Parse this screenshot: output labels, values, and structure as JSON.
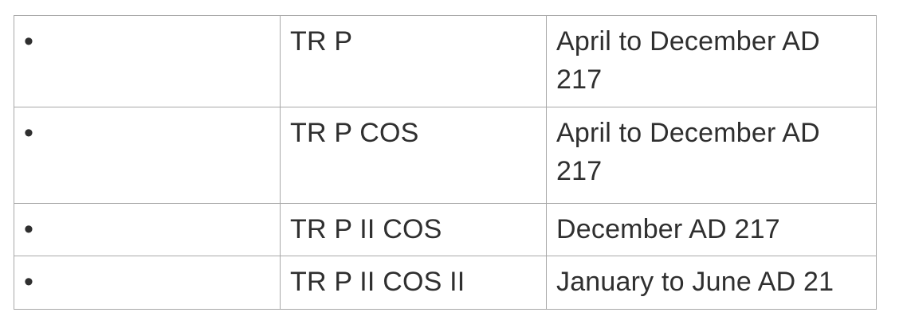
{
  "page": {
    "background_color": "#ffffff"
  },
  "table": {
    "border_color": "#a8a8a8",
    "text_color": "#2f2f2f",
    "columns": [
      "bullet",
      "titulature",
      "date_range"
    ],
    "rows": [
      {
        "bullet": "•",
        "titulature": "TR P",
        "date": "April to December AD 217"
      },
      {
        "bullet": "•",
        "titulature": "TR P COS",
        "date": "April to December AD 217"
      },
      {
        "bullet": "•",
        "titulature": "TR P II COS",
        "date": "December AD 217"
      },
      {
        "bullet": "•",
        "titulature": "TR P II COS II",
        "date": "January to June AD 21"
      }
    ]
  }
}
